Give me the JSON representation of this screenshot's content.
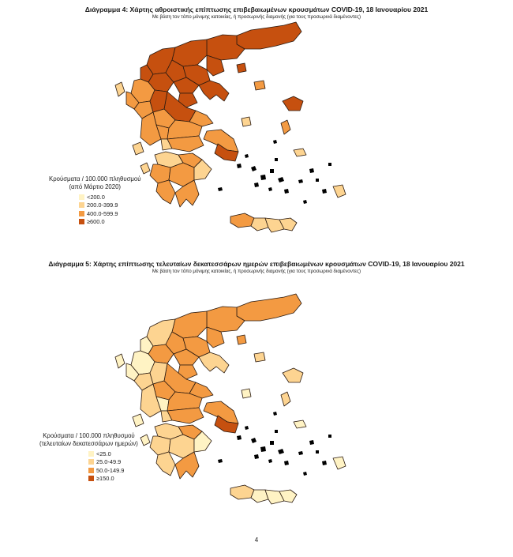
{
  "maps": [
    {
      "title": "Διάγραμμα 4: Χάρτης αθροιστικής επίπτωσης επιβεβαιωμένων κρουσμάτων COVID-19, 18 Ιανουαρίου 2021",
      "subtitle": "Με βάση τον τόπο μόνιμης κατοικίας, ή προσωρινής διαμονής (για τους προσωρινά διαμένοντες)",
      "legend": {
        "title_line1": "Κρούσματα / 100.000 πληθυσμού",
        "title_line2": "(από Μάρτιο 2020)",
        "items": [
          {
            "label": "<200.0",
            "color": "#fff3c4"
          },
          {
            "label": "200.0-399.9",
            "color": "#fdd491"
          },
          {
            "label": "400.0-599.9",
            "color": "#f39a42"
          },
          {
            "label": "≥600.0",
            "color": "#c6500f"
          }
        ]
      }
    },
    {
      "title": "Διάγραμμα 5: Χάρτης επίπτωσης τελευταίων δεκατεσσάρων ημερών επιβεβαιωμένων κρουσμάτων COVID-19, 18 Ιανουαρίου 2021",
      "subtitle": "Με βάση τον τόπο μόνιμης κατοικίας, ή προσωρινής διαμονής (για τους προσωρινά διαμένοντες)",
      "legend": {
        "title_line1": "Κρούσματα / 100.000 πληθυσμού",
        "title_line2": "(τελευταίων δεκατεσσάρων ημερών)",
        "items": [
          {
            "label": "<25.0",
            "color": "#fff3c4"
          },
          {
            "label": "25.0-49.9",
            "color": "#fdd491"
          },
          {
            "label": "50.0-149.9",
            "color": "#f39a42"
          },
          {
            "label": "≥150.0",
            "color": "#c6500f"
          }
        ]
      }
    }
  ],
  "page_number": "4"
}
